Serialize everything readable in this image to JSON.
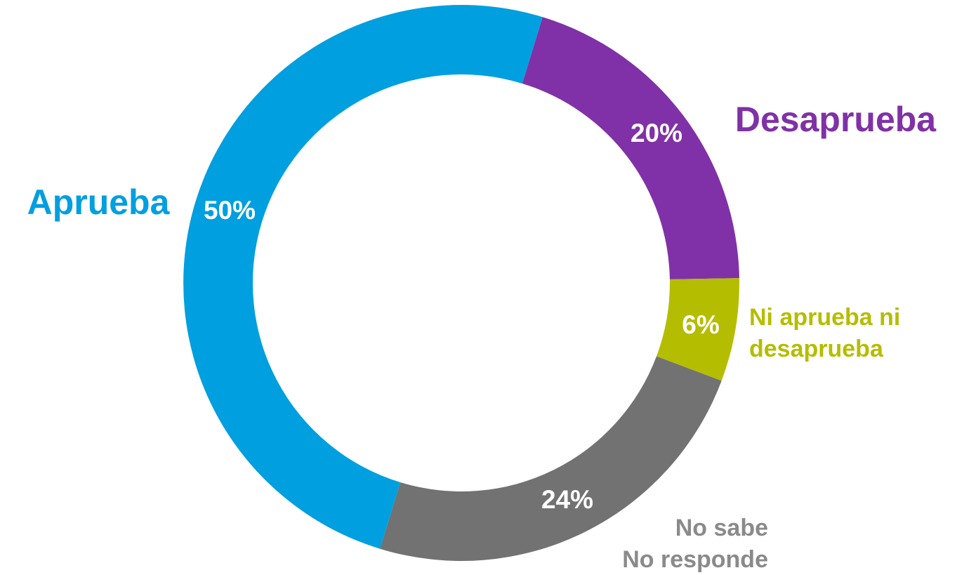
{
  "chart_data": {
    "type": "donut",
    "categories": [
      [
        "Desaprueba"
      ],
      [
        "Ni aprueba ni",
        "desaprueba"
      ],
      [
        "No sabe",
        "No responde"
      ],
      [
        "Aprueba"
      ]
    ],
    "values": [
      20,
      6,
      24,
      50
    ],
    "value_labels": [
      "20%",
      "6%",
      "24%",
      "50%"
    ],
    "colors": [
      "#8031a7",
      "#b5bd00",
      "#717271",
      "#009fdf"
    ],
    "label_colors": [
      "#8031a7",
      "#b5bd00",
      "#8a8a8a",
      "#009fdf"
    ]
  }
}
